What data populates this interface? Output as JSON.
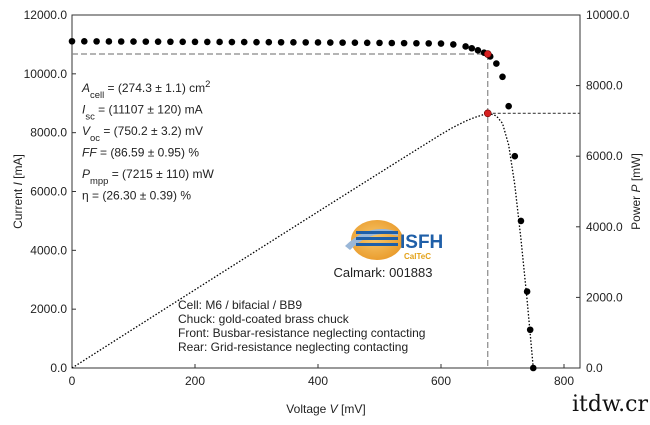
{
  "chart_data": {
    "type": "scatter",
    "x_label": [
      {
        "text": "Voltage "
      },
      {
        "text": "V",
        "style": "italic"
      },
      {
        "text": " [mV]"
      }
    ],
    "y_label": [
      {
        "text": "Current "
      },
      {
        "text": "I",
        "style": "italic"
      },
      {
        "text": " [mA]"
      }
    ],
    "y2_label": [
      {
        "text": "Power "
      },
      {
        "text": "P",
        "style": "italic"
      },
      {
        "text": " [mW]"
      }
    ],
    "xlim": [
      0,
      826
    ],
    "xticks": [
      0,
      200,
      400,
      600,
      800
    ],
    "ylim": [
      0,
      12000
    ],
    "yticks": [
      {
        "value": 0,
        "label": "0.0"
      },
      {
        "value": 2000,
        "label": "2000.0"
      },
      {
        "value": 4000,
        "label": "4000.0"
      },
      {
        "value": 6000,
        "label": "6000.0"
      },
      {
        "value": 8000,
        "label": "8000.0"
      },
      {
        "value": 10000,
        "label": "10000.0"
      },
      {
        "value": 12000,
        "label": "12000.0"
      }
    ],
    "y2lim": [
      0,
      10000
    ],
    "y2ticks": [
      {
        "value": 0,
        "label": "0.0"
      },
      {
        "value": 2000,
        "label": "2000.0"
      },
      {
        "value": 4000,
        "label": "4000.0"
      },
      {
        "value": 6000,
        "label": "6000.0"
      },
      {
        "value": 8000,
        "label": "8000.0"
      },
      {
        "value": 10000,
        "label": "10000.0"
      }
    ],
    "x": [
      0,
      20,
      40,
      60,
      80,
      100,
      120,
      140,
      160,
      180,
      200,
      220,
      240,
      260,
      280,
      300,
      320,
      340,
      360,
      380,
      400,
      420,
      440,
      460,
      480,
      500,
      520,
      540,
      560,
      580,
      600,
      620,
      640,
      650,
      660,
      670,
      676,
      680,
      690,
      700,
      710,
      720,
      730,
      740,
      745,
      750
    ],
    "series": [
      {
        "color": "#000000",
        "axis": "y",
        "values": [
          11107,
          11105,
          11103,
          11101,
          11099,
          11097,
          11095,
          11093,
          11091,
          11089,
          11087,
          11085,
          11083,
          11081,
          11079,
          11077,
          11075,
          11073,
          11071,
          11069,
          11067,
          11064,
          11061,
          11058,
          11055,
          11052,
          11048,
          11044,
          11040,
          11035,
          11030,
          11000,
          10930,
          10870,
          10800,
          10720,
          10673,
          10590,
          10350,
          9900,
          8900,
          7200,
          5000,
          2600,
          1300,
          0
        ]
      },
      {
        "color": "#000000",
        "axis": "y2",
        "values": [
          0,
          222,
          444,
          666,
          888,
          1110,
          1331,
          1553,
          1775,
          1996,
          2217,
          2439,
          2660,
          2881,
          3102,
          3323,
          3544,
          3765,
          3986,
          4206,
          4427,
          4647,
          4867,
          5087,
          5306,
          5526,
          5745,
          5964,
          6182,
          6400,
          6618,
          6820,
          6995,
          7066,
          7128,
          7182,
          7215,
          7201,
          7142,
          6930,
          6319,
          5184,
          3650,
          1924,
          969,
          0
        ]
      }
    ],
    "mpp": {
      "x": 676,
      "current": 10673,
      "power": 7215,
      "color": "#d62020"
    },
    "annotations": [
      [
        {
          "text": "A",
          "style": "italic"
        },
        {
          "text": "cell",
          "style": "sub"
        },
        {
          "text": " = (274.3 ± 1.1) cm"
        },
        {
          "text": "2",
          "style": "sup"
        }
      ],
      [
        {
          "text": "I",
          "style": "italic"
        },
        {
          "text": "sc",
          "style": "sub"
        },
        {
          "text": " = (11107 ± 120) mA"
        }
      ],
      [
        {
          "text": "V",
          "style": "italic"
        },
        {
          "text": "oc",
          "style": "sub"
        },
        {
          "text": " = (750.2 ± 3.2) mV"
        }
      ],
      [
        {
          "text": "FF",
          "style": "italic"
        },
        {
          "text": " = (86.59 ± 0.95) %"
        }
      ],
      [
        {
          "text": "P",
          "style": "italic"
        },
        {
          "text": "mpp",
          "style": "sub"
        },
        {
          "text": " = (7215 ± 110) mW"
        }
      ],
      [
        {
          "text": "η = (26.30 ± 0.39) %"
        }
      ]
    ],
    "notes": [
      "Cell: M6 / bifacial / BB9",
      "Chuck: gold-coated brass chuck",
      "Front: Busbar-resistance neglecting contacting",
      "Rear: Grid-resistance neglecting contacting"
    ],
    "logo": {
      "name": "ISFH",
      "sub": "CalTeC"
    },
    "calmark": "Calmark: 001883",
    "watermark": "itdw.cr"
  }
}
